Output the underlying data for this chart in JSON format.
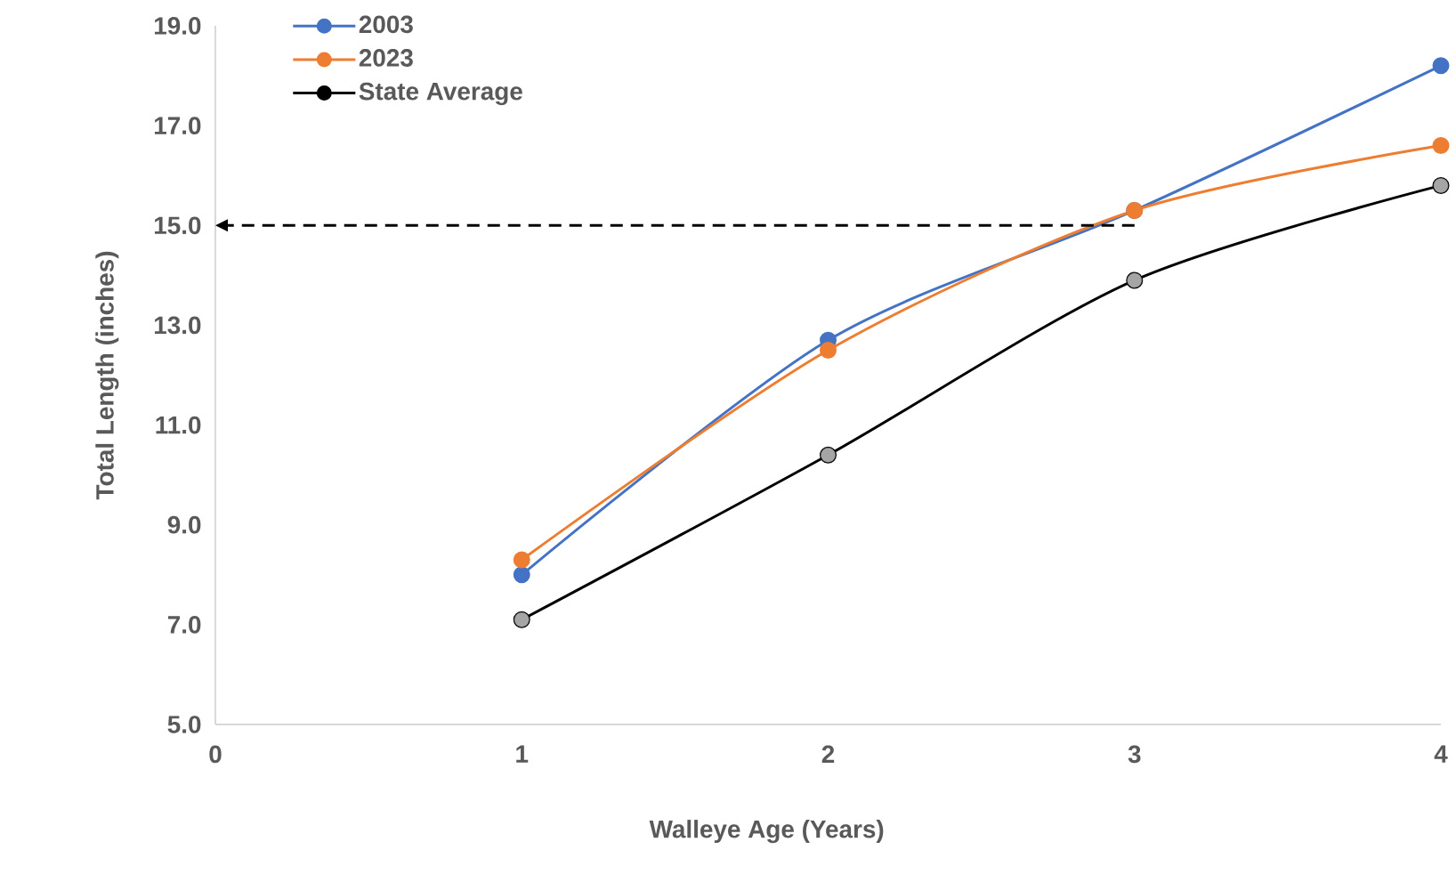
{
  "chart_data": {
    "type": "line",
    "xlabel": "Walleye Age (Years)",
    "ylabel": "Total Length (inches)",
    "x": [
      1,
      2,
      3,
      4
    ],
    "series": [
      {
        "name": "2003",
        "color": "#4472c4",
        "values": [
          8.0,
          12.7,
          15.3,
          18.2
        ]
      },
      {
        "name": "2023",
        "color": "#ed7d31",
        "values": [
          8.3,
          12.5,
          15.3,
          16.6
        ]
      },
      {
        "name": "State Average",
        "color": "#000000",
        "colors": [
          "#a5a5a5",
          "#a5a5a5",
          "#a5a5a5",
          "#a5a5a5"
        ],
        "values": [
          7.1,
          10.4,
          13.9,
          15.8
        ]
      },
      {
        "x": [
          0,
          3
        ],
        "values": [
          15,
          15
        ],
        "color": "#000000",
        "line_style": "dashed",
        "marker": "none"
      }
    ],
    "xlim": [
      0,
      4
    ],
    "xticks": [
      0,
      1,
      2,
      3,
      4
    ],
    "ylim": [
      5,
      19
    ],
    "yticks": [
      {
        "value": 5,
        "label": "5.0"
      },
      {
        "value": 7,
        "label": "7.0"
      },
      {
        "value": 9,
        "label": "9.0"
      },
      {
        "value": 11,
        "label": "11.0"
      },
      {
        "value": 13,
        "label": "13.0"
      },
      {
        "value": 15,
        "label": "15.0"
      },
      {
        "value": 17,
        "label": "17.0"
      },
      {
        "value": 19,
        "label": "19.0"
      }
    ],
    "marker": "circle",
    "line_style": "solid",
    "grid": false,
    "legend": "top left"
  }
}
